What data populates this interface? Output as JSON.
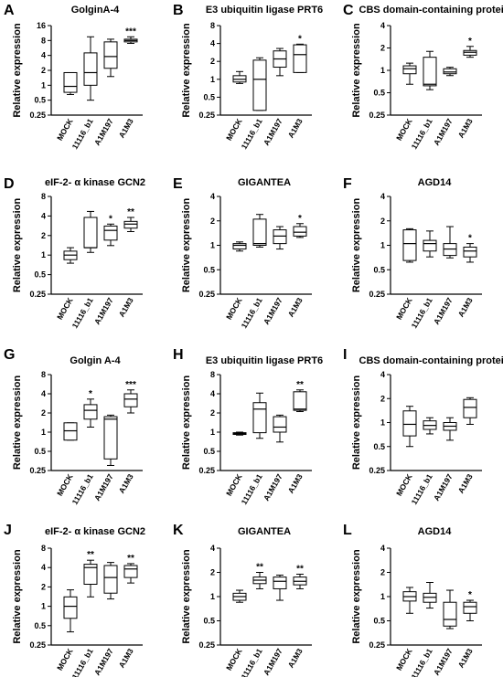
{
  "chart_data": [
    {
      "panel": "A",
      "title": "GolginA-4",
      "type": "box",
      "ylabel": "Relative expression",
      "yscale": "log2",
      "yticks": [
        "0.25",
        "0.5",
        "1",
        "2",
        "4",
        "8",
        "16"
      ],
      "ylim": [
        0.25,
        16
      ],
      "categories": [
        "MOCK",
        "11116_b1",
        "A1M197",
        "A1M3"
      ],
      "boxes": [
        {
          "min": 0.65,
          "q1": 0.72,
          "median": 0.95,
          "q3": 1.8,
          "max": 1.8
        },
        {
          "min": 0.5,
          "q1": 1.0,
          "median": 1.8,
          "q3": 4.5,
          "max": 9.5
        },
        {
          "min": 1.5,
          "q1": 2.2,
          "median": 3.8,
          "q3": 7.5,
          "max": 8.5
        },
        {
          "min": 7.0,
          "q1": 7.5,
          "median": 8.0,
          "q3": 8.5,
          "max": 9.5
        }
      ],
      "annotations": [
        "",
        "",
        "",
        "***"
      ]
    },
    {
      "panel": "B",
      "title": "E3 ubiquitin ligase PRT6",
      "type": "box",
      "ylabel": "Relative expression",
      "yscale": "log2",
      "yticks": [
        "0.25",
        "0.5",
        "1",
        "2",
        "4",
        "8"
      ],
      "ylim": [
        0.25,
        8
      ],
      "categories": [
        "MOCK",
        "11116_b1",
        "A1M197",
        "A1M3"
      ],
      "boxes": [
        {
          "min": 0.85,
          "q1": 0.9,
          "median": 1.0,
          "q3": 1.15,
          "max": 1.35
        },
        {
          "min": 0.3,
          "q1": 0.3,
          "median": 1.0,
          "q3": 2.1,
          "max": 2.3
        },
        {
          "min": 1.15,
          "q1": 1.6,
          "median": 2.2,
          "q3": 3.0,
          "max": 3.3
        },
        {
          "min": 1.3,
          "q1": 1.3,
          "median": 2.6,
          "q3": 3.8,
          "max": 3.9
        }
      ],
      "annotations": [
        "",
        "",
        "",
        "*"
      ]
    },
    {
      "panel": "C",
      "title": "CBS domain-containing protein",
      "type": "box",
      "ylabel": "Relative expression",
      "yscale": "log2",
      "yticks": [
        "0.25",
        "0.5",
        "1",
        "2",
        "4"
      ],
      "ylim": [
        0.25,
        4
      ],
      "categories": [
        "MOCK",
        "11116_b1",
        "A1M197",
        "A1M3"
      ],
      "boxes": [
        {
          "min": 0.65,
          "q1": 0.9,
          "median": 1.05,
          "q3": 1.15,
          "max": 1.25
        },
        {
          "min": 0.55,
          "q1": 0.62,
          "median": 0.65,
          "q3": 1.5,
          "max": 1.8
        },
        {
          "min": 0.85,
          "q1": 0.9,
          "median": 0.95,
          "q3": 1.05,
          "max": 1.1
        },
        {
          "min": 1.5,
          "q1": 1.6,
          "median": 1.75,
          "q3": 1.85,
          "max": 2.1
        }
      ],
      "annotations": [
        "",
        "",
        "",
        "*"
      ]
    },
    {
      "panel": "D",
      "title": "eIF-2- α kinase GCN2",
      "type": "box",
      "ylabel": "Relative expression",
      "yscale": "log2",
      "yticks": [
        "0.25",
        "0.5",
        "1",
        "2",
        "4",
        "8"
      ],
      "ylim": [
        0.25,
        8
      ],
      "categories": [
        "MOCK",
        "11116_b1",
        "A1M197",
        "A1M3"
      ],
      "boxes": [
        {
          "min": 0.75,
          "q1": 0.85,
          "median": 1.0,
          "q3": 1.15,
          "max": 1.3
        },
        {
          "min": 1.1,
          "q1": 1.3,
          "median": 1.3,
          "q3": 3.8,
          "max": 4.7
        },
        {
          "min": 1.4,
          "q1": 1.7,
          "median": 2.4,
          "q3": 2.8,
          "max": 3.0
        },
        {
          "min": 2.3,
          "q1": 2.6,
          "median": 3.0,
          "q3": 3.3,
          "max": 3.8
        }
      ],
      "annotations": [
        "",
        "",
        "*",
        "**"
      ]
    },
    {
      "panel": "E",
      "title": "GIGANTEA",
      "type": "box",
      "ylabel": "Relative expression",
      "yscale": "log2",
      "yticks": [
        "0.25",
        "0.5",
        "1",
        "2",
        "4"
      ],
      "ylim": [
        0.25,
        4
      ],
      "categories": [
        "MOCK",
        "11116_b1",
        "A1M197",
        "A1M3"
      ],
      "boxes": [
        {
          "min": 0.85,
          "q1": 0.9,
          "median": 1.0,
          "q3": 1.05,
          "max": 1.1
        },
        {
          "min": 0.95,
          "q1": 1.0,
          "median": 1.05,
          "q3": 2.1,
          "max": 2.4
        },
        {
          "min": 0.9,
          "q1": 1.05,
          "median": 1.3,
          "q3": 1.55,
          "max": 1.7
        },
        {
          "min": 1.25,
          "q1": 1.3,
          "median": 1.45,
          "q3": 1.7,
          "max": 1.85
        }
      ],
      "annotations": [
        "",
        "",
        "",
        "*"
      ]
    },
    {
      "panel": "F",
      "title": "AGD14",
      "type": "box",
      "ylabel": "Relative expression",
      "yscale": "log2",
      "yticks": [
        "0.25",
        "0.5",
        "1",
        "2",
        "4"
      ],
      "ylim": [
        0.25,
        4
      ],
      "categories": [
        "MOCK",
        "11116_b1",
        "A1M197",
        "A1M3"
      ],
      "boxes": [
        {
          "min": 0.62,
          "q1": 0.65,
          "median": 1.05,
          "q3": 1.55,
          "max": 1.6
        },
        {
          "min": 0.72,
          "q1": 0.85,
          "median": 1.05,
          "q3": 1.15,
          "max": 1.5
        },
        {
          "min": 0.7,
          "q1": 0.75,
          "median": 0.9,
          "q3": 1.05,
          "max": 1.7
        },
        {
          "min": 0.62,
          "q1": 0.72,
          "median": 0.85,
          "q3": 0.95,
          "max": 1.05
        }
      ],
      "annotations": [
        "",
        "",
        "",
        "*"
      ]
    },
    {
      "panel": "G",
      "title": "Golgin A-4",
      "type": "box",
      "ylabel": "Relative expression",
      "yscale": "log2",
      "yticks": [
        "0.25",
        "0.5",
        "1",
        "2",
        "4",
        "8"
      ],
      "ylim": [
        0.25,
        8
      ],
      "categories": [
        "MOCK",
        "11116_b1",
        "A1M197",
        "A1M3"
      ],
      "boxes": [
        {
          "min": 0.75,
          "q1": 0.75,
          "median": 1.05,
          "q3": 1.4,
          "max": 1.4
        },
        {
          "min": 1.2,
          "q1": 1.6,
          "median": 2.2,
          "q3": 2.7,
          "max": 3.3
        },
        {
          "min": 0.3,
          "q1": 0.38,
          "median": 1.6,
          "q3": 1.75,
          "max": 1.85
        },
        {
          "min": 2.0,
          "q1": 2.5,
          "median": 3.3,
          "q3": 4.0,
          "max": 4.6
        }
      ],
      "annotations": [
        "",
        "*",
        "",
        "***"
      ]
    },
    {
      "panel": "H",
      "title": "E3 ubiquitin ligase PRT6",
      "type": "box",
      "ylabel": "Relative expression",
      "yscale": "log2",
      "yticks": [
        "0.25",
        "0.5",
        "1",
        "2",
        "4",
        "8"
      ],
      "ylim": [
        0.25,
        8
      ],
      "categories": [
        "MOCK",
        "11116_b1",
        "A1M197",
        "A1M3"
      ],
      "boxes": [
        {
          "min": 0.9,
          "q1": 0.92,
          "median": 0.95,
          "q3": 0.98,
          "max": 1.0
        },
        {
          "min": 0.8,
          "q1": 0.98,
          "median": 2.3,
          "q3": 2.9,
          "max": 4.1
        },
        {
          "min": 0.7,
          "q1": 1.0,
          "median": 1.2,
          "q3": 1.75,
          "max": 1.85
        },
        {
          "min": 2.1,
          "q1": 2.2,
          "median": 2.3,
          "q3": 4.3,
          "max": 4.6
        }
      ],
      "annotations": [
        "",
        "",
        "",
        "**"
      ]
    },
    {
      "panel": "I",
      "title": "CBS domain-containing protein",
      "type": "box",
      "ylabel": "Relative expression",
      "yscale": "log2",
      "yticks": [
        "0.25",
        "0.5",
        "1",
        "2",
        "4"
      ],
      "ylim": [
        0.25,
        4
      ],
      "categories": [
        "MOCK",
        "11116_b1",
        "A1M197",
        "A1M3"
      ],
      "boxes": [
        {
          "min": 0.5,
          "q1": 0.68,
          "median": 0.95,
          "q3": 1.4,
          "max": 1.6
        },
        {
          "min": 0.72,
          "q1": 0.82,
          "median": 0.92,
          "q3": 1.05,
          "max": 1.15
        },
        {
          "min": 0.6,
          "q1": 0.8,
          "median": 0.9,
          "q3": 1.0,
          "max": 1.15
        },
        {
          "min": 0.95,
          "q1": 1.15,
          "median": 1.55,
          "q3": 1.95,
          "max": 2.05
        }
      ],
      "annotations": [
        "",
        "",
        "",
        ""
      ]
    },
    {
      "panel": "J",
      "title": "eIF-2- α kinase GCN2",
      "type": "box",
      "ylabel": "Relative expression",
      "yscale": "log2",
      "yticks": [
        "0.25",
        "0.5",
        "1",
        "2",
        "4",
        "8"
      ],
      "ylim": [
        0.25,
        8
      ],
      "categories": [
        "MOCK",
        "11116_b1",
        "A1M197",
        "A1M3"
      ],
      "boxes": [
        {
          "min": 0.4,
          "q1": 0.65,
          "median": 1.0,
          "q3": 1.4,
          "max": 1.8
        },
        {
          "min": 1.4,
          "q1": 2.2,
          "median": 4.0,
          "q3": 4.5,
          "max": 5.2
        },
        {
          "min": 1.3,
          "q1": 1.6,
          "median": 2.8,
          "q3": 4.3,
          "max": 4.8
        },
        {
          "min": 2.3,
          "q1": 2.8,
          "median": 3.8,
          "q3": 4.3,
          "max": 4.6
        }
      ],
      "annotations": [
        "",
        "**",
        "",
        "**"
      ]
    },
    {
      "panel": "K",
      "title": "GIGANTEA",
      "type": "box",
      "ylabel": "Relative expression",
      "yscale": "log2",
      "yticks": [
        "0.25",
        "0.5",
        "1",
        "2",
        "4"
      ],
      "ylim": [
        0.25,
        4
      ],
      "categories": [
        "MOCK",
        "11116_b1",
        "A1M197",
        "A1M3"
      ],
      "boxes": [
        {
          "min": 0.85,
          "q1": 0.9,
          "median": 1.0,
          "q3": 1.1,
          "max": 1.2
        },
        {
          "min": 1.25,
          "q1": 1.45,
          "median": 1.6,
          "q3": 1.75,
          "max": 2.0
        },
        {
          "min": 0.9,
          "q1": 1.25,
          "median": 1.55,
          "q3": 1.75,
          "max": 1.85
        },
        {
          "min": 1.25,
          "q1": 1.4,
          "median": 1.55,
          "q3": 1.75,
          "max": 1.9
        }
      ],
      "annotations": [
        "",
        "**",
        "",
        "**"
      ]
    },
    {
      "panel": "L",
      "title": "AGD14",
      "type": "box",
      "ylabel": "Relative expression",
      "yscale": "log2",
      "yticks": [
        "0.25",
        "0.5",
        "1",
        "2",
        "4"
      ],
      "ylim": [
        0.25,
        4
      ],
      "categories": [
        "MOCK",
        "11116_b1",
        "A1M197",
        "A1M3"
      ],
      "boxes": [
        {
          "min": 0.62,
          "q1": 0.88,
          "median": 1.0,
          "q3": 1.15,
          "max": 1.3
        },
        {
          "min": 0.72,
          "q1": 0.85,
          "median": 0.98,
          "q3": 1.1,
          "max": 1.5
        },
        {
          "min": 0.4,
          "q1": 0.43,
          "median": 0.52,
          "q3": 0.85,
          "max": 1.2
        },
        {
          "min": 0.5,
          "q1": 0.62,
          "median": 0.75,
          "q3": 0.85,
          "max": 0.9
        }
      ],
      "annotations": [
        "",
        "",
        "",
        "*"
      ]
    }
  ]
}
